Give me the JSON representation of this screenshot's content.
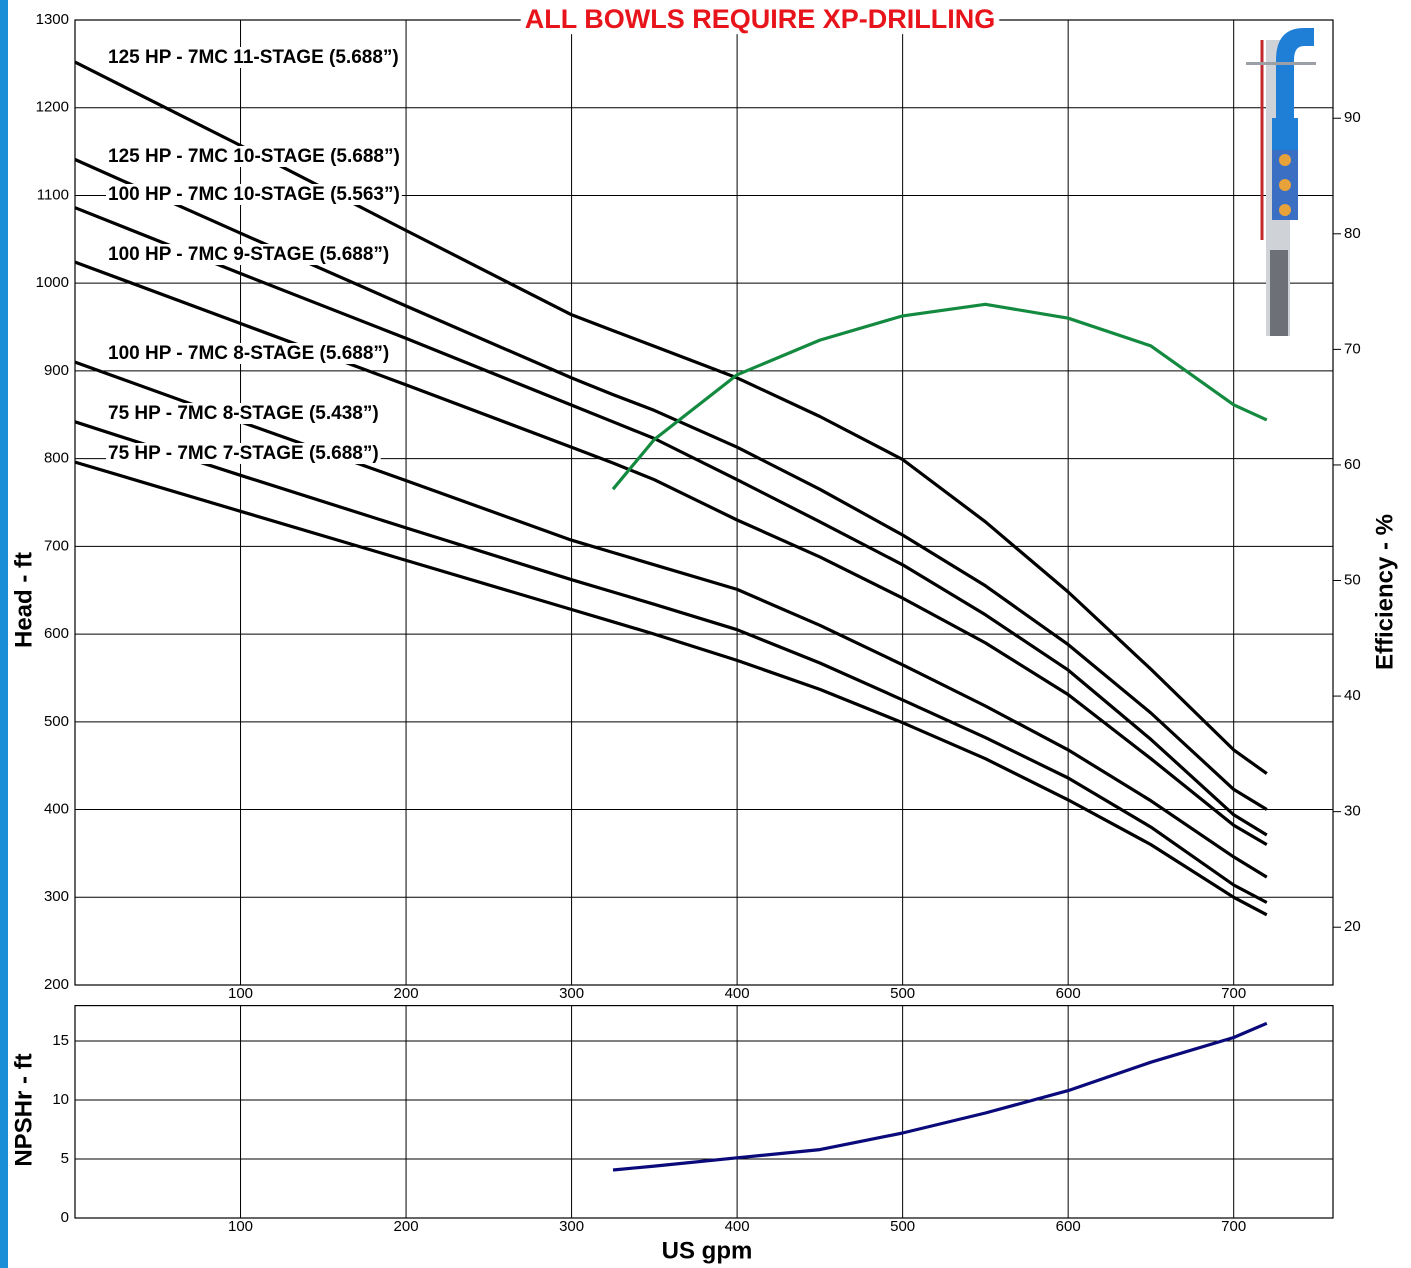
{
  "chart_data": [
    {
      "type": "line",
      "title": "ALL BOWLS REQUIRE XP-DRILLING",
      "y_label": "Head - ft",
      "y2_label": "Efficiency - %",
      "x": [
        0,
        100,
        200,
        300,
        325,
        350,
        400,
        450,
        500,
        550,
        600,
        650,
        700,
        720
      ],
      "series": [
        {
          "name": "125 HP - 7MC 11-STAGE (5.688”)",
          "color": "#000000",
          "values": [
            1252,
            1157,
            1060,
            964,
            946,
            928,
            892,
            848,
            799,
            728,
            648,
            560,
            468,
            441
          ]
        },
        {
          "name": "125 HP - 7MC 10-STAGE (5.688”)",
          "color": "#000000",
          "values": [
            1141,
            1057,
            974,
            892,
            873,
            855,
            813,
            765,
            713,
            655,
            588,
            510,
            423,
            400
          ]
        },
        {
          "name": "100 HP - 7MC 10-STAGE (5.563”)",
          "color": "#000000",
          "values": [
            1086,
            1011,
            937,
            861,
            842,
            823,
            776,
            728,
            679,
            622,
            559,
            480,
            394,
            371
          ]
        },
        {
          "name": "100 HP - 7MC 9-STAGE (5.688”)",
          "color": "#000000",
          "values": [
            1024,
            954,
            884,
            813,
            795,
            776,
            730,
            688,
            641,
            590,
            531,
            458,
            382,
            360
          ]
        },
        {
          "name": "100 HP - 7MC 8-STAGE (5.688”)",
          "color": "#000000",
          "values": [
            910,
            842,
            775,
            707,
            693,
            679,
            651,
            610,
            565,
            518,
            468,
            410,
            346,
            323
          ]
        },
        {
          "name": "75 HP - 7MC 8-STAGE (5.438”)",
          "color": "#000000",
          "values": [
            842,
            781,
            721,
            662,
            648,
            634,
            605,
            567,
            525,
            482,
            436,
            380,
            314,
            294
          ]
        },
        {
          "name": "75 HP - 7MC 7-STAGE (5.688”)",
          "color": "#000000",
          "values": [
            796,
            740,
            684,
            628,
            614,
            600,
            570,
            537,
            499,
            458,
            411,
            360,
            300,
            280
          ]
        },
        {
          "color": "#138a3f",
          "axis": "y2",
          "values": [
            null,
            null,
            null,
            null,
            57.9,
            62.2,
            67.8,
            70.8,
            72.9,
            73.9,
            72.7,
            70.3,
            65.2,
            63.9
          ]
        }
      ],
      "xlim": [
        0,
        760
      ],
      "xticks": [
        100,
        200,
        300,
        400,
        500,
        600,
        700
      ],
      "ylim": [
        200,
        1300
      ],
      "yticks": [
        200,
        300,
        400,
        500,
        600,
        700,
        800,
        900,
        1000,
        1100,
        1200,
        1300
      ],
      "y2lim": [
        15,
        98.5
      ],
      "y2ticks": [
        20,
        30,
        40,
        50,
        60,
        70,
        80,
        90
      ],
      "grid": true
    },
    {
      "type": "line",
      "y_label": "NPSHr - ft",
      "x_label": "US gpm",
      "x": [
        325,
        350,
        400,
        450,
        500,
        550,
        600,
        650,
        700,
        720
      ],
      "series": [
        {
          "color": "#0a0a7a",
          "values": [
            4.07,
            4.4,
            5.1,
            5.8,
            7.2,
            8.9,
            10.8,
            13.2,
            15.3,
            16.5
          ]
        }
      ],
      "xlim": [
        0,
        760
      ],
      "xticks": [
        100,
        200,
        300,
        400,
        500,
        600,
        700
      ],
      "ylim": [
        0,
        18
      ],
      "yticks": [
        0,
        5,
        10,
        15
      ],
      "grid": true
    }
  ]
}
